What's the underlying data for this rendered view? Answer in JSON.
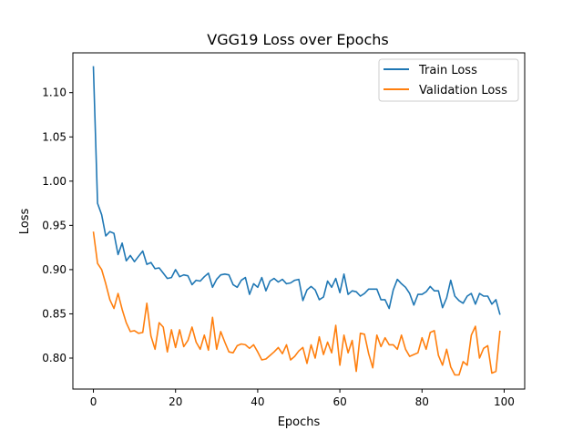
{
  "chart_data": {
    "type": "line",
    "title": "VGG19 Loss over Epochs",
    "xlabel": "Epochs",
    "ylabel": "Loss",
    "xlim": [
      -5,
      105
    ],
    "ylim": [
      0.765,
      1.145
    ],
    "xticks": [
      0,
      20,
      40,
      60,
      80,
      100
    ],
    "yticks": [
      0.8,
      0.85,
      0.9,
      0.95,
      1.0,
      1.05,
      1.1
    ],
    "xtick_labels": [
      "0",
      "20",
      "40",
      "60",
      "80",
      "100"
    ],
    "ytick_labels": [
      "0.80",
      "0.85",
      "0.90",
      "0.95",
      "1.00",
      "1.05",
      "1.10"
    ],
    "grid": false,
    "legend_position": "top-right",
    "x": [
      0,
      1,
      2,
      3,
      4,
      5,
      6,
      7,
      8,
      9,
      10,
      11,
      12,
      13,
      14,
      15,
      16,
      17,
      18,
      19,
      20,
      21,
      22,
      23,
      24,
      25,
      26,
      27,
      28,
      29,
      30,
      31,
      32,
      33,
      34,
      35,
      36,
      37,
      38,
      39,
      40,
      41,
      42,
      43,
      44,
      45,
      46,
      47,
      48,
      49,
      50,
      51,
      52,
      53,
      54,
      55,
      56,
      57,
      58,
      59,
      60,
      61,
      62,
      63,
      64,
      65,
      66,
      67,
      68,
      69,
      70,
      71,
      72,
      73,
      74,
      75,
      76,
      77,
      78,
      79,
      80,
      81,
      82,
      83,
      84,
      85,
      86,
      87,
      88,
      89,
      90,
      91,
      92,
      93,
      94,
      95,
      96,
      97,
      98,
      99
    ],
    "series": [
      {
        "name": "Train Loss",
        "color": "#1f77b4",
        "values": [
          1.13,
          0.975,
          0.962,
          0.938,
          0.943,
          0.941,
          0.917,
          0.93,
          0.91,
          0.916,
          0.909,
          0.915,
          0.921,
          0.906,
          0.908,
          0.901,
          0.902,
          0.896,
          0.89,
          0.891,
          0.9,
          0.892,
          0.894,
          0.893,
          0.883,
          0.888,
          0.887,
          0.892,
          0.896,
          0.88,
          0.889,
          0.894,
          0.895,
          0.894,
          0.883,
          0.88,
          0.888,
          0.891,
          0.872,
          0.884,
          0.88,
          0.891,
          0.876,
          0.887,
          0.89,
          0.886,
          0.889,
          0.884,
          0.885,
          0.888,
          0.889,
          0.865,
          0.877,
          0.881,
          0.877,
          0.866,
          0.869,
          0.887,
          0.88,
          0.89,
          0.874,
          0.895,
          0.872,
          0.876,
          0.875,
          0.87,
          0.873,
          0.878,
          0.878,
          0.878,
          0.866,
          0.866,
          0.856,
          0.877,
          0.889,
          0.884,
          0.88,
          0.873,
          0.86,
          0.872,
          0.872,
          0.875,
          0.881,
          0.876,
          0.876,
          0.857,
          0.868,
          0.888,
          0.87,
          0.865,
          0.862,
          0.87,
          0.873,
          0.861,
          0.873,
          0.87,
          0.87,
          0.861,
          0.866,
          0.849
        ]
      },
      {
        "name": "Validation Loss",
        "color": "#ff7f0e",
        "values": [
          0.943,
          0.907,
          0.9,
          0.884,
          0.866,
          0.856,
          0.873,
          0.855,
          0.84,
          0.83,
          0.831,
          0.828,
          0.829,
          0.862,
          0.825,
          0.81,
          0.84,
          0.835,
          0.807,
          0.832,
          0.812,
          0.832,
          0.813,
          0.82,
          0.835,
          0.818,
          0.81,
          0.826,
          0.809,
          0.846,
          0.81,
          0.83,
          0.818,
          0.807,
          0.806,
          0.814,
          0.816,
          0.815,
          0.811,
          0.815,
          0.807,
          0.798,
          0.799,
          0.803,
          0.807,
          0.812,
          0.805,
          0.815,
          0.798,
          0.802,
          0.808,
          0.812,
          0.794,
          0.815,
          0.8,
          0.824,
          0.804,
          0.818,
          0.806,
          0.837,
          0.792,
          0.826,
          0.806,
          0.82,
          0.785,
          0.828,
          0.827,
          0.805,
          0.789,
          0.826,
          0.813,
          0.823,
          0.815,
          0.815,
          0.81,
          0.826,
          0.81,
          0.802,
          0.804,
          0.806,
          0.823,
          0.81,
          0.829,
          0.831,
          0.803,
          0.792,
          0.81,
          0.79,
          0.781,
          0.781,
          0.796,
          0.792,
          0.826,
          0.836,
          0.8,
          0.811,
          0.814,
          0.783,
          0.785,
          0.831
        ]
      }
    ]
  }
}
